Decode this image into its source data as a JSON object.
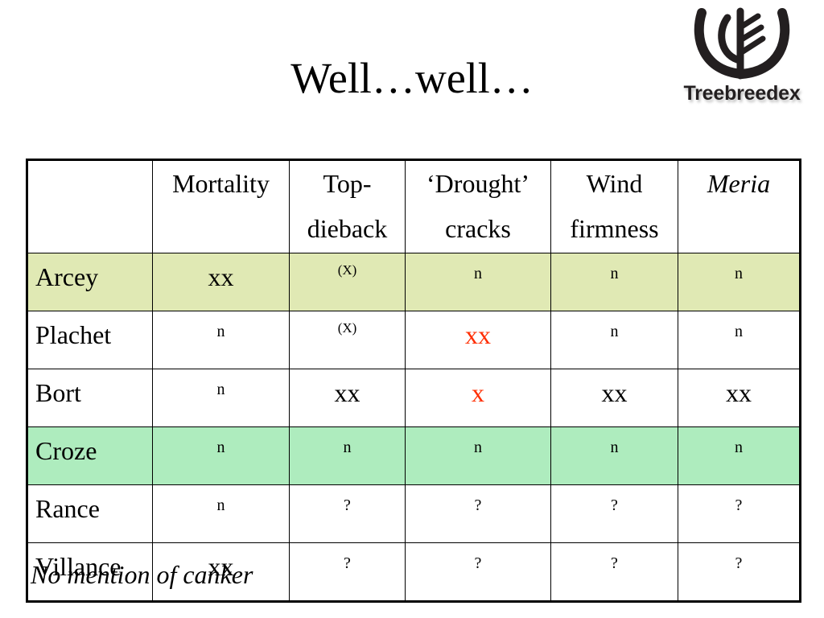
{
  "title": "Well…well…",
  "logo": {
    "text": "Treebreedex",
    "icon": "treebreedex-logo-icon"
  },
  "table": {
    "headers": [
      "",
      "Mortality",
      "Top-\ndieback",
      "‘Drought’\ncracks",
      "Wind\nfirmness",
      "Meria"
    ],
    "rows": [
      {
        "label": "Arcey",
        "cells": [
          "xx",
          "(X)",
          "n",
          "n",
          "n"
        ]
      },
      {
        "label": "Plachet",
        "cells": [
          "n",
          "(X)",
          "xx",
          "n",
          "n"
        ]
      },
      {
        "label": "Bort",
        "cells": [
          "n",
          "xx",
          "x",
          "xx",
          "xx"
        ]
      },
      {
        "label": "Croze",
        "cells": [
          "n",
          "n",
          "n",
          "n",
          "n"
        ]
      },
      {
        "label": "Rance",
        "cells": [
          "n",
          "?",
          "?",
          "?",
          "?"
        ]
      },
      {
        "label": "Villance",
        "cells": [
          "xx",
          "?",
          "?",
          "?",
          "?"
        ]
      }
    ]
  },
  "colors": {
    "row_highlight_1": "#e0e9b4",
    "row_highlight_2": "#aeecbe",
    "emphasis_red": "#ff2d00"
  },
  "note": "No mention of canker"
}
